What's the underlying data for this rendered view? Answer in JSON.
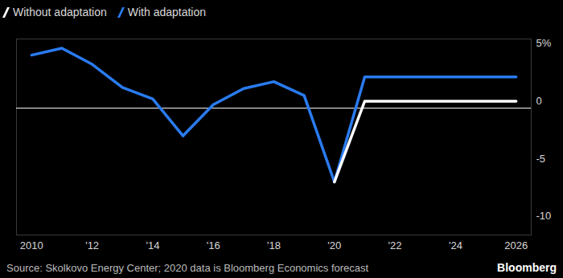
{
  "chart_data": {
    "type": "line",
    "source": "Source: Skolkovo Energy Center; 2020 data is Bloomberg Economics forecast",
    "credit": "Bloomberg",
    "x": [
      2010,
      2011,
      2012,
      2013,
      2014,
      2015,
      2016,
      2017,
      2018,
      2019,
      2020,
      2021,
      2022,
      2023,
      2024,
      2025,
      2026
    ],
    "series": [
      {
        "name": "Without adaptation",
        "color": "#ffffff",
        "values": [
          null,
          null,
          null,
          null,
          null,
          null,
          null,
          null,
          null,
          null,
          -6.4,
          0.6,
          0.6,
          0.6,
          0.6,
          0.6,
          0.6
        ]
      },
      {
        "name": "With adaptation",
        "color": "#2a7bf0",
        "values": [
          4.6,
          5.2,
          3.8,
          1.8,
          0.8,
          -2.4,
          0.3,
          1.7,
          2.3,
          1.1,
          -6.4,
          2.7,
          2.7,
          2.7,
          2.7,
          2.7,
          2.7
        ]
      }
    ],
    "xlim": [
      2009.5,
      2026.5
    ],
    "xticks": [
      2010,
      {
        "value": 2012,
        "label": "'12"
      },
      {
        "value": 2014,
        "label": "'14"
      },
      {
        "value": 2016,
        "label": "'16"
      },
      {
        "value": 2018,
        "label": "'18"
      },
      {
        "value": 2020,
        "label": "'20"
      },
      {
        "value": 2022,
        "label": "'22"
      },
      {
        "value": 2024,
        "label": "'24"
      },
      2026
    ],
    "ylim": [
      -11,
      6
    ],
    "yticks": [
      {
        "value": 5,
        "label": "5%"
      },
      0,
      -5,
      -10
    ],
    "grid": false,
    "legend": "top-left"
  }
}
